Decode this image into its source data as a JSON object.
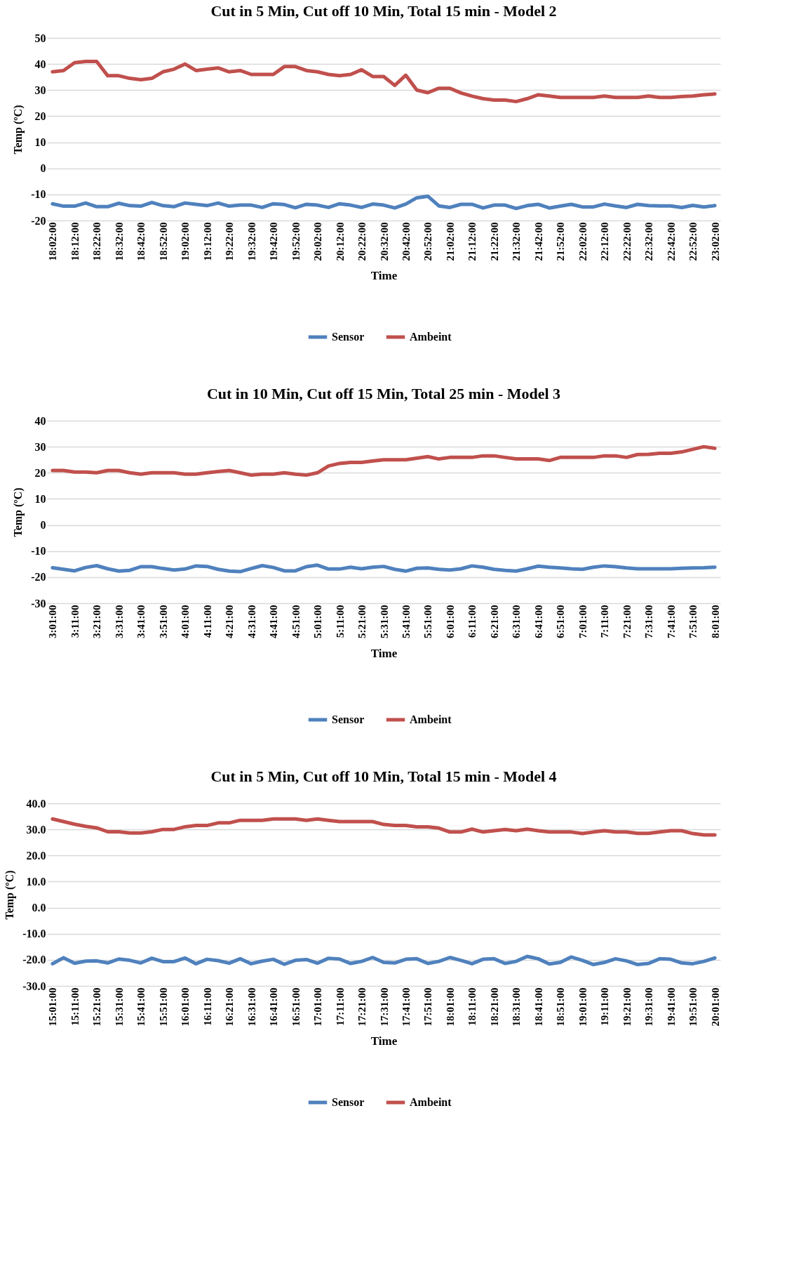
{
  "chart_data": [
    {
      "type": "line",
      "title": "Cut in 5 Min, Cut off 10 Min, Total 15 min - Model 2",
      "xlabel": "Time",
      "ylabel": "Temp (ºC)",
      "categories": [
        "18:02:00",
        null,
        "18:12:00",
        null,
        "18:22:00",
        null,
        "18:32:00",
        null,
        "18:42:00",
        null,
        "18:52:00",
        null,
        "19:02:00",
        null,
        "19:12:00",
        null,
        "19:22:00",
        null,
        "19:32:00",
        null,
        "19:42:00",
        null,
        "19:52:00",
        null,
        "20:02:00",
        null,
        "20:12:00",
        null,
        "20:22:00",
        null,
        "20:32:00",
        null,
        "20:42:00",
        null,
        "20:52:00",
        null,
        "21:02:00",
        null,
        "21:12:00",
        null,
        "21:22:00",
        null,
        "21:32:00",
        null,
        "21:42:00",
        null,
        "21:52:00",
        null,
        "22:02:00",
        null,
        "22:12:00",
        null,
        "22:22:00",
        null,
        "22:32:00",
        null,
        "22:42:00",
        null,
        "22:52:00",
        null,
        "23:02:00"
      ],
      "ylim": [
        -20,
        50
      ],
      "yticks": [
        -20,
        -10,
        0,
        10,
        20,
        30,
        40,
        50
      ],
      "grid": "y",
      "legend": "bottom",
      "line_style": "solid",
      "marker": "none",
      "series": [
        {
          "name": "Sensor",
          "color": "#4f81bd",
          "values": [
            -13.6,
            -14.5,
            -14.5,
            -13.3,
            -14.7,
            -14.7,
            -13.4,
            -14.3,
            -14.5,
            -13.1,
            -14.3,
            -14.7,
            -13.3,
            -13.8,
            -14.3,
            -13.3,
            -14.5,
            -14.1,
            -14.1,
            -15,
            -13.6,
            -13.9,
            -15.1,
            -13.8,
            -14.1,
            -15,
            -13.6,
            -14.1,
            -15,
            -13.7,
            -14.1,
            -15.2,
            -13.7,
            -11.3,
            -10.7,
            -14.4,
            -15,
            -13.8,
            -13.8,
            -15.2,
            -14.1,
            -14.1,
            -15.4,
            -14.3,
            -13.8,
            -15.2,
            -14.5,
            -13.8,
            -14.8,
            -14.8,
            -13.7,
            -14.4,
            -15,
            -13.8,
            -14.3,
            -14.4,
            -14.4,
            -15,
            -14.2,
            -14.8,
            -14.3
          ]
        },
        {
          "name": "Ambeint",
          "color": "#c0504d",
          "values": [
            37,
            37.5,
            40.5,
            41,
            41,
            35.5,
            35.5,
            34.5,
            34,
            34.5,
            37,
            38,
            40,
            37.5,
            38,
            38.5,
            37,
            37.5,
            36,
            36,
            36,
            39,
            39,
            37.5,
            37,
            36,
            35.5,
            36,
            37.8,
            35.2,
            35.2,
            31.8,
            35.7,
            30,
            29,
            30.7,
            30.7,
            28.9,
            27.7,
            26.7,
            26.2,
            26.2,
            25.6,
            26.7,
            28.2,
            27.7,
            27.2,
            27.2,
            27.2,
            27.2,
            27.7,
            27.2,
            27.2,
            27.2,
            27.7,
            27.2,
            27.2,
            27.5,
            27.7,
            28.2,
            28.5
          ]
        }
      ]
    },
    {
      "type": "line",
      "title": "Cut in 10 Min, Cut off 15 Min, Total 25 min - Model 3",
      "xlabel": "Time",
      "ylabel": "Temp (ºC)",
      "categories": [
        "3:01:00",
        null,
        "3:11:00",
        null,
        "3:21:00",
        null,
        "3:31:00",
        null,
        "3:41:00",
        null,
        "3:51:00",
        null,
        "4:01:00",
        null,
        "4:11:00",
        null,
        "4:21:00",
        null,
        "4:31:00",
        null,
        "4:41:00",
        null,
        "4:51:00",
        null,
        "5:01:00",
        null,
        "5:11:00",
        null,
        "5:21:00",
        null,
        "5:31:00",
        null,
        "5:41:00",
        null,
        "5:51:00",
        null,
        "6:01:00",
        null,
        "6:11:00",
        null,
        "6:21:00",
        null,
        "6:31:00",
        null,
        "6:41:00",
        null,
        "6:51:00",
        null,
        "7:01:00",
        null,
        "7:11:00",
        null,
        "7:21:00",
        null,
        "7:31:00",
        null,
        "7:41:00",
        null,
        "7:51:00",
        null,
        "8:01:00"
      ],
      "ylim": [
        -30,
        40
      ],
      "yticks": [
        -30,
        -20,
        -10,
        0,
        10,
        20,
        30,
        40
      ],
      "grid": "y",
      "legend": "bottom",
      "line_style": "solid",
      "marker": "none",
      "series": [
        {
          "name": "Sensor",
          "color": "#4f81bd",
          "values": [
            -16.4,
            -17,
            -17.6,
            -16.3,
            -15.6,
            -16.8,
            -17.7,
            -17.4,
            -16,
            -16,
            -16.7,
            -17.3,
            -16.9,
            -15.7,
            -15.9,
            -17,
            -17.7,
            -17.9,
            -16.7,
            -15.6,
            -16.3,
            -17.6,
            -17.6,
            -16,
            -15.4,
            -16.9,
            -16.9,
            -16.2,
            -16.8,
            -16.2,
            -15.9,
            -17,
            -17.7,
            -16.6,
            -16.5,
            -17,
            -17.3,
            -16.8,
            -15.7,
            -16.2,
            -17,
            -17.4,
            -17.7,
            -16.8,
            -15.8,
            -16.2,
            -16.5,
            -16.8,
            -17,
            -16.2,
            -15.7,
            -16,
            -16.5,
            -16.8,
            -16.8,
            -16.8,
            -16.8,
            -16.6,
            -16.5,
            -16.4,
            -16.2
          ]
        },
        {
          "name": "Ambeint",
          "color": "#c0504d",
          "values": [
            20.9,
            20.9,
            20.3,
            20.3,
            20,
            20.9,
            20.9,
            20,
            19.5,
            20,
            20,
            20,
            19.5,
            19.5,
            20,
            20.5,
            20.9,
            20,
            19.1,
            19.5,
            19.5,
            20,
            19.5,
            19.1,
            20,
            22.6,
            23.6,
            24,
            24,
            24.5,
            25,
            25,
            25,
            25.6,
            26.2,
            25.3,
            25.9,
            25.9,
            25.9,
            26.5,
            26.5,
            25.9,
            25.3,
            25.3,
            25.3,
            24.7,
            25.9,
            25.9,
            25.9,
            25.9,
            26.5,
            26.5,
            25.9,
            27,
            27.1,
            27.5,
            27.5,
            28,
            29,
            30,
            29.4
          ]
        }
      ]
    },
    {
      "type": "line",
      "title": "Cut in 5 Min, Cut off 10 Min, Total 15 min - Model 4",
      "xlabel": "Time",
      "ylabel": "Temp (ºC)",
      "categories": [
        "15:01:00",
        null,
        "15:11:00",
        null,
        "15:21:00",
        null,
        "15:31:00",
        null,
        "15:41:00",
        null,
        "15:51:00",
        null,
        "16:01:00",
        null,
        "16:11:00",
        null,
        "16:21:00",
        null,
        "16:31:00",
        null,
        "16:41:00",
        null,
        "16:51:00",
        null,
        "17:01:00",
        null,
        "17:11:00",
        null,
        "17:21:00",
        null,
        "17:31:00",
        null,
        "17:41:00",
        null,
        "17:51:00",
        null,
        "18:01:00",
        null,
        "18:11:00",
        null,
        "18:21:00",
        null,
        "18:31:00",
        null,
        "18:41:00",
        null,
        "18:51:00",
        null,
        "19:01:00",
        null,
        "19:11:00",
        null,
        "19:21:00",
        null,
        "19:31:00",
        null,
        "19:41:00",
        null,
        "19:51:00",
        null,
        "20:01:00"
      ],
      "ylim": [
        -30,
        40
      ],
      "yticks": [
        {
          "value": -30,
          "label": "-30.0"
        },
        {
          "value": -20,
          "label": "-20.0"
        },
        {
          "value": -10,
          "label": "-10.0"
        },
        {
          "value": 0,
          "label": "0.0"
        },
        {
          "value": 10,
          "label": "10.0"
        },
        {
          "value": 20,
          "label": "20.0"
        },
        {
          "value": 30,
          "label": "30.0"
        },
        {
          "value": 40,
          "label": "40.0"
        }
      ],
      "grid": "y",
      "legend": "bottom",
      "line_style": "solid",
      "marker": "none",
      "series": [
        {
          "name": "Sensor",
          "color": "#4f81bd",
          "values": [
            -21.5,
            -19.2,
            -21.3,
            -20.5,
            -20.4,
            -21.2,
            -19.7,
            -20.2,
            -21.2,
            -19.4,
            -20.7,
            -20.7,
            -19.3,
            -21.5,
            -19.8,
            -20.3,
            -21.3,
            -19.6,
            -21.5,
            -20.5,
            -19.8,
            -21.7,
            -20.2,
            -19.9,
            -21.3,
            -19.4,
            -19.7,
            -21.4,
            -20.6,
            -19.1,
            -21,
            -21.2,
            -19.8,
            -19.6,
            -21.4,
            -20.6,
            -19.1,
            -20.2,
            -21.5,
            -19.8,
            -19.6,
            -21.4,
            -20.6,
            -18.7,
            -19.6,
            -21.6,
            -21,
            -18.9,
            -20.2,
            -21.8,
            -21,
            -19.6,
            -20.4,
            -21.8,
            -21.4,
            -19.6,
            -19.8,
            -21.2,
            -21.5,
            -20.6,
            -19.3
          ]
        },
        {
          "name": "Ambeint",
          "color": "#c0504d",
          "values": [
            34,
            33,
            32,
            31.2,
            30.6,
            29.1,
            29.1,
            28.6,
            28.6,
            29.1,
            30,
            30,
            31,
            31.5,
            31.5,
            32.5,
            32.5,
            33.5,
            33.5,
            33.5,
            34,
            34,
            34,
            33.5,
            34,
            33.5,
            33,
            33,
            33,
            33,
            31.9,
            31.5,
            31.5,
            31,
            31,
            30.5,
            29,
            29,
            30.1,
            29,
            29.5,
            30,
            29.5,
            30.1,
            29.5,
            29,
            29,
            29,
            28.4,
            29,
            29.5,
            29,
            29,
            28.5,
            28.5,
            29,
            29.5,
            29.5,
            28.4,
            27.9,
            27.9
          ]
        }
      ]
    }
  ]
}
